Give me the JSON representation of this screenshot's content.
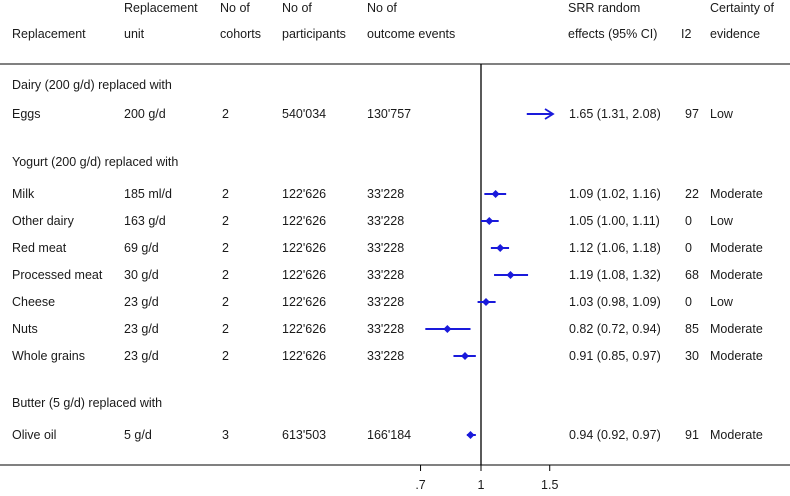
{
  "headers": {
    "replacement": "Replacement",
    "unit": [
      "Replacement",
      "unit"
    ],
    "cohorts": [
      "No of",
      "cohorts"
    ],
    "participants": [
      "No of",
      "participants"
    ],
    "events": [
      "No of",
      "outcome events"
    ],
    "srr": [
      "SRR random",
      "effects (95% CI)"
    ],
    "i2": "I2",
    "certainty": [
      "Certainty of",
      "evidence"
    ]
  },
  "groups": [
    {
      "title": "Dairy (200 g/d) replaced with",
      "rows": [
        {
          "label": "Eggs",
          "unit": "200 g/d",
          "cohorts": "2",
          "participants": "540'034",
          "events": "130'757",
          "srr": 1.65,
          "lo": 1.31,
          "hi": 2.08,
          "ci_text": "1.65 (1.31, 2.08)",
          "i2": "97",
          "certainty": "Low",
          "arrow": true
        }
      ]
    },
    {
      "title": "Yogurt (200 g/d) replaced with",
      "rows": [
        {
          "label": "Milk",
          "unit": "185 ml/d",
          "cohorts": "2",
          "participants": "122'626",
          "events": "33'228",
          "srr": 1.09,
          "lo": 1.02,
          "hi": 1.16,
          "ci_text": "1.09 (1.02, 1.16)",
          "i2": "22",
          "certainty": "Moderate"
        },
        {
          "label": "Other dairy",
          "unit": "163 g/d",
          "cohorts": "2",
          "participants": "122'626",
          "events": "33'228",
          "srr": 1.05,
          "lo": 1.0,
          "hi": 1.11,
          "ci_text": "1.05 (1.00, 1.11)",
          "i2": "0",
          "certainty": "Low"
        },
        {
          "label": "Red meat",
          "unit": "69 g/d",
          "cohorts": "2",
          "participants": "122'626",
          "events": "33'228",
          "srr": 1.12,
          "lo": 1.06,
          "hi": 1.18,
          "ci_text": "1.12 (1.06, 1.18)",
          "i2": "0",
          "certainty": "Moderate"
        },
        {
          "label": "Processed meat",
          "unit": "30 g/d",
          "cohorts": "2",
          "participants": "122'626",
          "events": "33'228",
          "srr": 1.19,
          "lo": 1.08,
          "hi": 1.32,
          "ci_text": "1.19 (1.08, 1.32)",
          "i2": "68",
          "certainty": "Moderate"
        },
        {
          "label": "Cheese",
          "unit": "23 g/d",
          "cohorts": "2",
          "participants": "122'626",
          "events": "33'228",
          "srr": 1.03,
          "lo": 0.98,
          "hi": 1.09,
          "ci_text": "1.03 (0.98, 1.09)",
          "i2": "0",
          "certainty": "Low"
        },
        {
          "label": "Nuts",
          "unit": "23 g/d",
          "cohorts": "2",
          "participants": "122'626",
          "events": "33'228",
          "srr": 0.82,
          "lo": 0.72,
          "hi": 0.94,
          "ci_text": "0.82 (0.72, 0.94)",
          "i2": "85",
          "certainty": "Moderate"
        },
        {
          "label": "Whole grains",
          "unit": "23 g/d",
          "cohorts": "2",
          "participants": "122'626",
          "events": "33'228",
          "srr": 0.91,
          "lo": 0.85,
          "hi": 0.97,
          "ci_text": "0.91 (0.85, 0.97)",
          "i2": "30",
          "certainty": "Moderate"
        }
      ]
    },
    {
      "title": "Butter (5 g/d) replaced with",
      "rows": [
        {
          "label": "Olive oil",
          "unit": "5 g/d",
          "cohorts": "3",
          "participants": "613'503",
          "events": "166'184",
          "srr": 0.94,
          "lo": 0.92,
          "hi": 0.97,
          "ci_text": "0.94 (0.92, 0.97)",
          "i2": "91",
          "certainty": "Moderate"
        }
      ]
    }
  ],
  "axis": {
    "ticks": [
      0.7,
      1,
      1.5
    ],
    "tick_labels": [
      ".7",
      "1",
      "1.5"
    ],
    "reference": 1,
    "scale": "log",
    "xlim": [
      0.47,
      1.5
    ]
  },
  "colors": {
    "estimate": "#1a1adb",
    "text": "#1a1a1a",
    "lines": "#000000"
  },
  "chart_data": {
    "type": "forest",
    "scale": "log",
    "reference": 1,
    "x_ticks": [
      0.7,
      1,
      1.5
    ],
    "series": [
      {
        "name": "",
        "categories": [
          "Eggs",
          "Milk",
          "Other dairy",
          "Red meat",
          "Processed meat",
          "Cheese",
          "Nuts",
          "Whole grains",
          "Olive oil"
        ],
        "values": [
          1.65,
          1.09,
          1.05,
          1.12,
          1.19,
          1.03,
          0.82,
          0.91,
          0.94
        ],
        "ci_low": [
          1.31,
          1.02,
          1.0,
          1.06,
          1.08,
          0.98,
          0.72,
          0.85,
          0.92
        ],
        "ci_high": [
          2.08,
          1.16,
          1.11,
          1.18,
          1.32,
          1.09,
          0.94,
          0.97,
          0.97
        ]
      }
    ]
  }
}
